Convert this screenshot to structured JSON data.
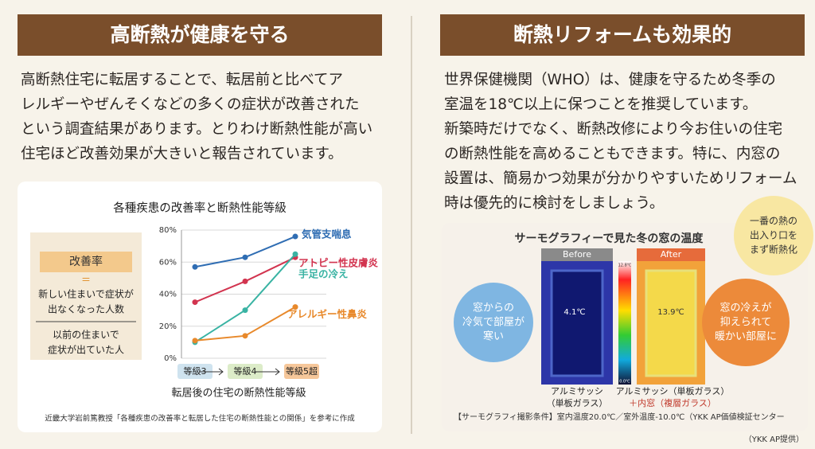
{
  "left": {
    "title": "高断熱が健康を守る",
    "body": [
      "高断熱住宅に転居することで、転居前と比べてア",
      "レルギーやぜんそくなどの多くの症状が改善された",
      "という調査結果があります。とりわけ断熱性能が高い",
      "住宅ほど改善効果が大きいと報告されています。"
    ],
    "legend": {
      "title": "改善率",
      "equals": "＝",
      "numerator": [
        "新しい住まいで症状が",
        "出なくなった人数"
      ],
      "denominator": [
        "以前の住まいで",
        "症状が出ていた人"
      ]
    },
    "source": "近畿大学岩前篤教授「各種疾患の改善率と転居した住宅の断熱性能との関係」を参考に作成"
  },
  "chart_data": {
    "type": "line",
    "title": "各種疾患の改善率と断熱性能等級",
    "xlabel": "転居後の住宅の断熱性能等級",
    "categories": [
      "等級3",
      "等級4",
      "等級5超"
    ],
    "category_colors": [
      "#cfe3ef",
      "#dcecc8",
      "#f6c79a"
    ],
    "ylim": [
      0,
      80
    ],
    "yticks": [
      {
        "value": 0,
        "label": "0%"
      },
      {
        "value": 20,
        "label": "20%"
      },
      {
        "value": 40,
        "label": "40%"
      },
      {
        "value": 60,
        "label": "60%"
      },
      {
        "value": 80,
        "label": "80%"
      }
    ],
    "grid": true,
    "series": [
      {
        "name": "気管支喘息",
        "color": "#2f6db3",
        "values": [
          57,
          63,
          76
        ]
      },
      {
        "name": "アトピー性皮膚炎",
        "color": "#d2344f",
        "values": [
          35,
          48,
          63
        ]
      },
      {
        "name": "手足の冷え",
        "color": "#39b3a3",
        "values": [
          10,
          30,
          65
        ]
      },
      {
        "name": "アレルギー性鼻炎",
        "color": "#e8892b",
        "values": [
          11,
          14,
          32
        ]
      }
    ]
  },
  "right": {
    "title": "断熱リフォームも効果的",
    "body": [
      "世界保健機関（WHO）は、健康を守るため冬季の",
      "室温を18℃以上に保つことを推奨しています。",
      "新築時だけでなく、断熱改修により今お住いの住宅",
      "の断熱性能を高めることもできます。特に、内窓の",
      "設置は、簡易かつ効果が分かりやすいためリフォーム",
      "時は優先的に検討をしましょう。"
    ],
    "thermo": {
      "title": "サーモグラフィーで見た冬の窓の温度",
      "before": "Before",
      "after": "After",
      "before_temp": "4.1℃",
      "after_temp": "13.9℃",
      "scale_top": "12.8℃",
      "scale_bottom": "0.0℃",
      "cold_bubble": [
        "窓からの",
        "冷気で部屋が",
        "寒い"
      ],
      "warm_bubble": [
        "窓の冷えが",
        "抑えられて",
        "暖かい部屋に"
      ],
      "top_bubble": [
        "一番の熱の",
        "出入り口を",
        "まず断熱化"
      ],
      "before_caption": [
        "アルミサッシ",
        "（単板ガラス）"
      ],
      "after_caption": [
        "アルミサッシ（単板ガラス）",
        "＋内窓（複層ガラス）"
      ],
      "conditions": "【サーモグラフィ撮影条件】室内温度20.0℃／室外温度-10.0℃（YKK AP価値検証センター"
    },
    "credit": "（YKK AP提供）"
  }
}
